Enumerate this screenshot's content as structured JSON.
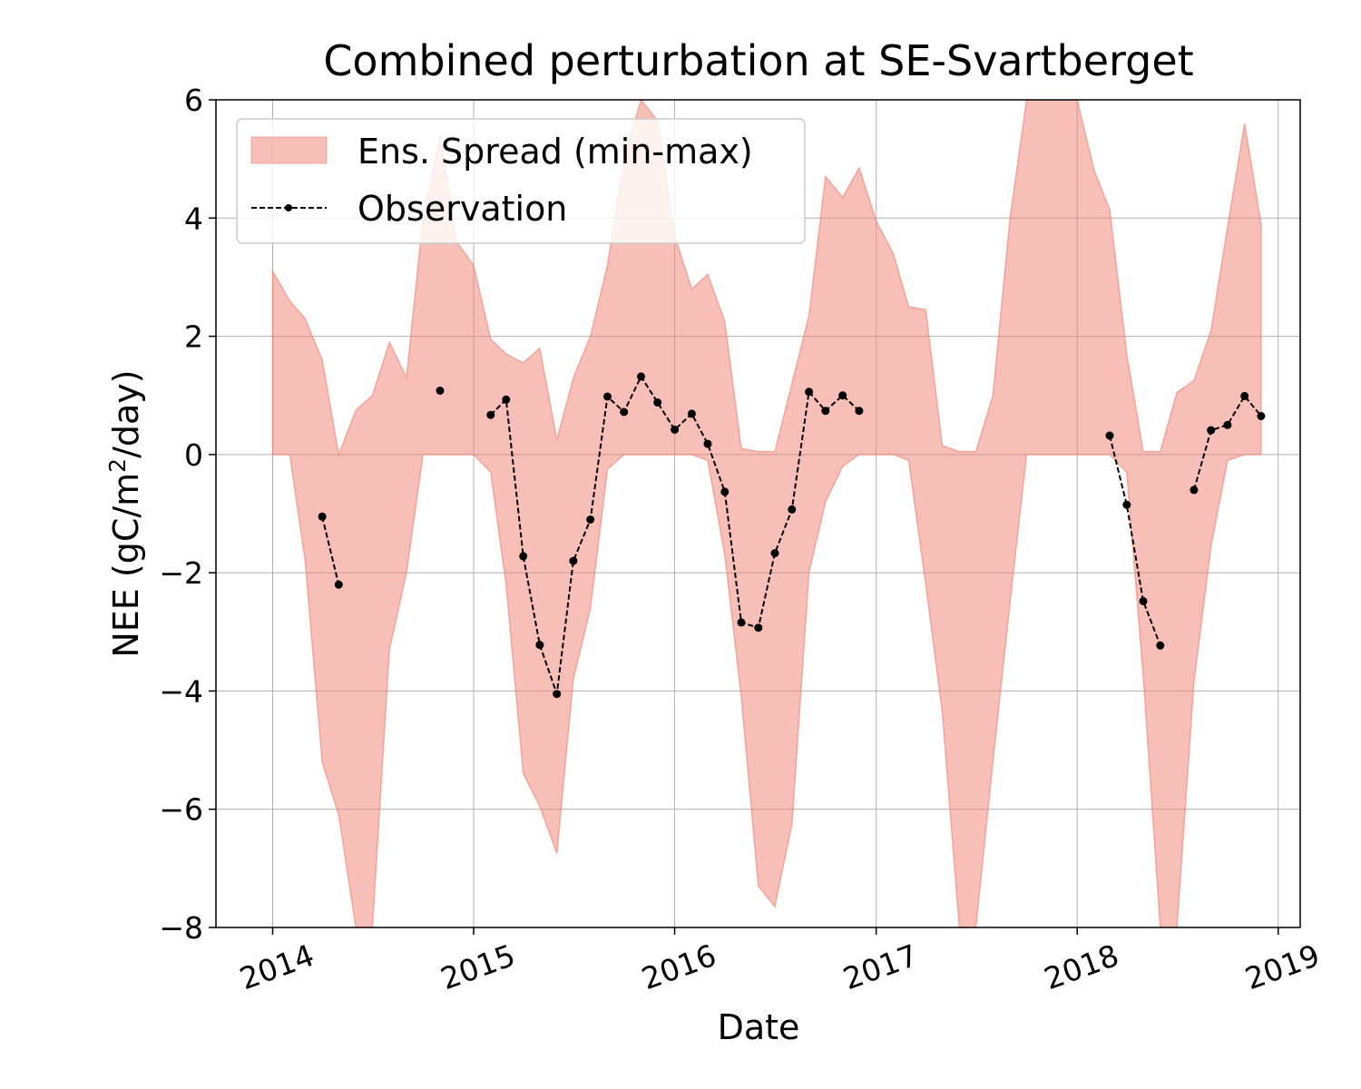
{
  "chart_data": {
    "type": "area",
    "title": "Combined perturbation at SE-Svartberget",
    "xlabel": "Date",
    "ylabel_main": "NEE  (gC/m",
    "ylabel_sup": "2",
    "ylabel_tail": "/day)",
    "xlim": [
      "2013-09-20",
      "2019-02-10"
    ],
    "ylim": [
      -8,
      6
    ],
    "x_ticks": [
      "2014",
      "2015",
      "2016",
      "2017",
      "2018",
      "2019"
    ],
    "y_ticks": [
      "−8",
      "−6",
      "−4",
      "−2",
      "0",
      "2",
      "4",
      "6"
    ],
    "grid": true,
    "legend_position": "upper-left",
    "legend": [
      {
        "label": "Ens. Spread (min-max)",
        "kind": "fill",
        "color": "#f08070"
      },
      {
        "label": "Observation",
        "kind": "line",
        "color": "#000000"
      }
    ],
    "spread": {
      "name": "Ens. Spread (min-max)",
      "color": "#f08070",
      "dates": [
        "2014-01-01",
        "2014-02-01",
        "2014-03-01",
        "2014-04-01",
        "2014-05-01",
        "2014-06-01",
        "2014-07-01",
        "2014-08-01",
        "2014-09-01",
        "2014-10-01",
        "2014-11-01",
        "2014-12-01",
        "2015-01-01",
        "2015-02-01",
        "2015-03-01",
        "2015-04-01",
        "2015-05-01",
        "2015-06-01",
        "2015-07-01",
        "2015-08-01",
        "2015-09-01",
        "2015-10-01",
        "2015-11-01",
        "2015-12-01",
        "2016-01-01",
        "2016-02-01",
        "2016-03-01",
        "2016-04-01",
        "2016-05-01",
        "2016-06-01",
        "2016-07-01",
        "2016-08-01",
        "2016-09-01",
        "2016-10-01",
        "2016-11-01",
        "2016-12-01",
        "2017-01-01",
        "2017-02-01",
        "2017-03-01",
        "2017-04-01",
        "2017-05-01",
        "2017-06-01",
        "2017-07-01",
        "2017-08-01",
        "2017-09-01",
        "2017-10-01",
        "2017-11-01",
        "2017-12-01",
        "2018-01-01",
        "2018-02-01",
        "2018-03-01",
        "2018-04-01",
        "2018-05-01",
        "2018-06-01",
        "2018-07-01",
        "2018-08-01",
        "2018-09-01",
        "2018-10-01",
        "2018-11-01",
        "2018-12-01"
      ],
      "max": [
        3.1,
        2.6,
        2.3,
        1.6,
        0.0,
        0.75,
        1.0,
        1.9,
        1.3,
        4.0,
        5.4,
        3.6,
        3.2,
        1.95,
        1.7,
        1.55,
        1.8,
        0.25,
        1.3,
        2.0,
        3.2,
        5.0,
        6.0,
        5.65,
        3.7,
        2.8,
        3.05,
        2.25,
        0.1,
        0.05,
        0.05,
        1.2,
        2.35,
        4.7,
        4.35,
        4.85,
        3.95,
        3.4,
        2.5,
        2.45,
        0.15,
        0.05,
        0.05,
        1.0,
        4.0,
        6.0,
        6.0,
        6.0,
        6.0,
        4.8,
        4.15,
        1.7,
        0.05,
        0.05,
        1.05,
        1.25,
        2.1,
        3.85,
        5.6,
        3.9
      ],
      "min": [
        0.0,
        0.0,
        -1.8,
        -5.2,
        -6.1,
        -8.0,
        -8.0,
        -3.3,
        -2.0,
        0.0,
        0.0,
        0.0,
        0.0,
        -0.3,
        -2.2,
        -5.4,
        -5.95,
        -6.75,
        -3.8,
        -2.6,
        -0.25,
        0.0,
        0.0,
        0.0,
        0.0,
        0.0,
        -0.1,
        -1.7,
        -4.1,
        -7.3,
        -7.65,
        -6.25,
        -2.0,
        -0.8,
        -0.2,
        0.0,
        0.0,
        0.0,
        -0.1,
        -2.2,
        -4.35,
        -8.0,
        -8.0,
        -5.2,
        -2.5,
        0.0,
        0.0,
        0.0,
        0.0,
        0.0,
        0.0,
        -0.3,
        -3.75,
        -8.0,
        -8.0,
        -3.85,
        -1.55,
        -0.1,
        0.0,
        0.0
      ]
    },
    "observation": {
      "name": "Observation",
      "color": "#000000",
      "segments": [
        [
          {
            "x": "2014-04-01",
            "y": -1.05
          },
          {
            "x": "2014-05-01",
            "y": -2.2
          }
        ],
        [
          {
            "x": "2014-11-01",
            "y": 1.08
          }
        ],
        [
          {
            "x": "2015-02-01",
            "y": 0.67
          },
          {
            "x": "2015-03-01",
            "y": 0.93
          },
          {
            "x": "2015-04-01",
            "y": -1.72
          },
          {
            "x": "2015-05-01",
            "y": -3.22
          },
          {
            "x": "2015-06-01",
            "y": -4.05
          },
          {
            "x": "2015-07-01",
            "y": -1.8
          },
          {
            "x": "2015-08-01",
            "y": -1.1
          },
          {
            "x": "2015-09-01",
            "y": 0.98
          },
          {
            "x": "2015-10-01",
            "y": 0.72
          },
          {
            "x": "2015-11-01",
            "y": 1.32
          },
          {
            "x": "2015-12-01",
            "y": 0.88
          },
          {
            "x": "2016-01-01",
            "y": 0.42
          },
          {
            "x": "2016-02-01",
            "y": 0.69
          },
          {
            "x": "2016-03-01",
            "y": 0.18
          },
          {
            "x": "2016-04-01",
            "y": -0.63
          },
          {
            "x": "2016-05-01",
            "y": -2.84
          },
          {
            "x": "2016-06-01",
            "y": -2.93
          },
          {
            "x": "2016-07-01",
            "y": -1.67
          },
          {
            "x": "2016-08-01",
            "y": -0.93
          },
          {
            "x": "2016-09-01",
            "y": 1.06
          },
          {
            "x": "2016-10-01",
            "y": 0.74
          },
          {
            "x": "2016-11-01",
            "y": 1.0
          },
          {
            "x": "2016-12-01",
            "y": 0.74
          }
        ],
        [
          {
            "x": "2018-03-01",
            "y": 0.32
          },
          {
            "x": "2018-04-01",
            "y": -0.85
          },
          {
            "x": "2018-05-01",
            "y": -2.48
          },
          {
            "x": "2018-06-01",
            "y": -3.23
          }
        ],
        [
          {
            "x": "2018-08-01",
            "y": -0.6
          },
          {
            "x": "2018-09-01",
            "y": 0.41
          },
          {
            "x": "2018-10-01",
            "y": 0.5
          },
          {
            "x": "2018-11-01",
            "y": 0.99
          },
          {
            "x": "2018-12-01",
            "y": 0.65
          }
        ]
      ]
    }
  }
}
